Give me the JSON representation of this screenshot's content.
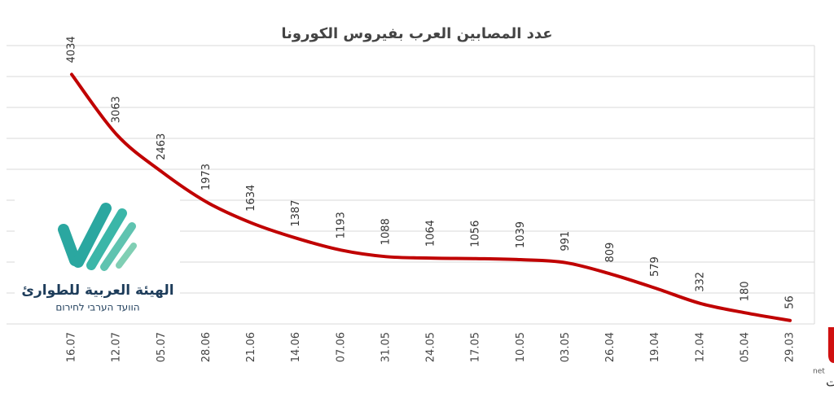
{
  "chart_data": {
    "type": "line",
    "title": "عدد المصابين العرب بفيروس الكورونا",
    "categories": [
      "16.07",
      "12.07",
      "05.07",
      "28.06",
      "21.06",
      "14.06",
      "07.06",
      "31.05",
      "24.05",
      "17.05",
      "10.05",
      "03.05",
      "26.04",
      "19.04",
      "12.04",
      "05.04",
      "29.03"
    ],
    "series": [
      {
        "color": "#c00000",
        "values": [
          4034,
          3063,
          2463,
          1973,
          1634,
          1387,
          1193,
          1088,
          1064,
          1056,
          1039,
          991,
          809,
          579,
          332,
          180,
          56
        ]
      }
    ],
    "ylim": [
      0,
      4500
    ],
    "yticks": [
      0,
      500,
      1000,
      1500,
      2000,
      2500,
      3000,
      3500,
      4000,
      4500
    ],
    "grid": true
  },
  "logo": {
    "name": "الهيئة العربية للطوارئ",
    "subtitle": "הוועד הערבי לחירום"
  },
  "watermark": {
    "name": "حيفا",
    "domain": "net",
    "subtitle": "صحيفة حيفا نت"
  }
}
